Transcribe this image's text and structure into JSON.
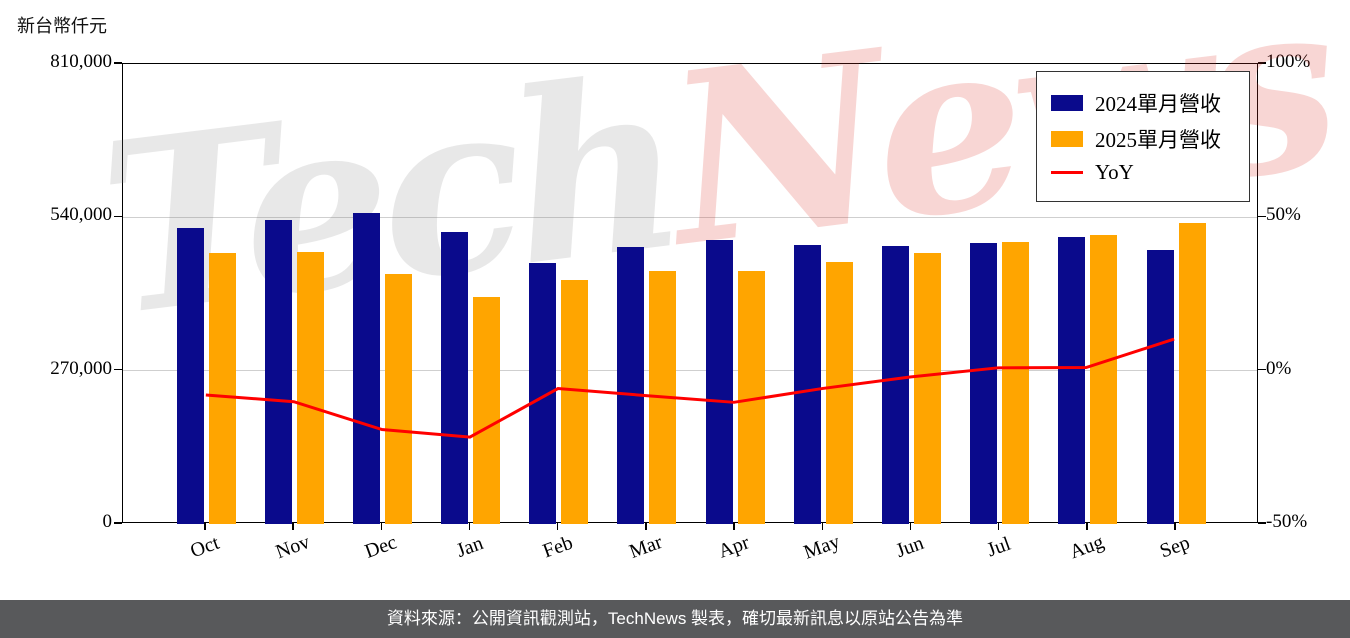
{
  "title_left": "新台幣仟元",
  "watermark": {
    "part1": "Tech",
    "part2": "News"
  },
  "legend": {
    "items": [
      {
        "label": "2024單月營收",
        "color": "#0a0a8c",
        "type": "box"
      },
      {
        "label": "2025單月營收",
        "color": "#ffa500",
        "type": "box"
      },
      {
        "label": "YoY",
        "color": "#ff0000",
        "type": "line"
      }
    ]
  },
  "footer": {
    "text": "資料來源：公開資訊觀測站，TechNews 製表，確切最新訊息以原站公告為準"
  },
  "chart_data": {
    "type": "bar",
    "title": "",
    "ylabel_left": "新台幣仟元",
    "categories": [
      "Oct",
      "Nov",
      "Dec",
      "Jan",
      "Feb",
      "Mar",
      "Apr",
      "May",
      "Jun",
      "Jul",
      "Aug",
      "Sep"
    ],
    "series": [
      {
        "name": "2024單月營收",
        "color": "#0a0a8c",
        "values": [
          522000,
          536000,
          548000,
          514000,
          459000,
          487000,
          500000,
          492000,
          489000,
          494000,
          506000,
          482000
        ]
      },
      {
        "name": "2025單月營收",
        "color": "#ffa500",
        "values": [
          478000,
          479000,
          440000,
          400000,
          430000,
          445000,
          446000,
          461000,
          477000,
          497000,
          509000,
          530000
        ]
      }
    ],
    "yoy": {
      "name": "YoY",
      "color": "#ff0000",
      "values": [
        -8.4,
        -10.6,
        -19.7,
        -22.2,
        -6.3,
        -8.6,
        -10.8,
        -6.3,
        -2.5,
        0.5,
        0.6,
        9.9
      ]
    },
    "ylim_left": [
      0,
      810000
    ],
    "yticks_left": [
      {
        "v": 0,
        "label": "0"
      },
      {
        "v": 270000,
        "label": "270,000"
      },
      {
        "v": 540000,
        "label": "540,000"
      },
      {
        "v": 810000,
        "label": "810,000"
      }
    ],
    "ylim_right": [
      -50,
      100
    ],
    "yticks_right": [
      {
        "v": -50,
        "label": "-50%"
      },
      {
        "v": 0,
        "label": "0%"
      },
      {
        "v": 50,
        "label": "50%"
      },
      {
        "v": 100,
        "label": "100%"
      }
    ],
    "gridlines_left": [
      270000,
      540000
    ],
    "legend_position": "top-right",
    "grid": true
  }
}
